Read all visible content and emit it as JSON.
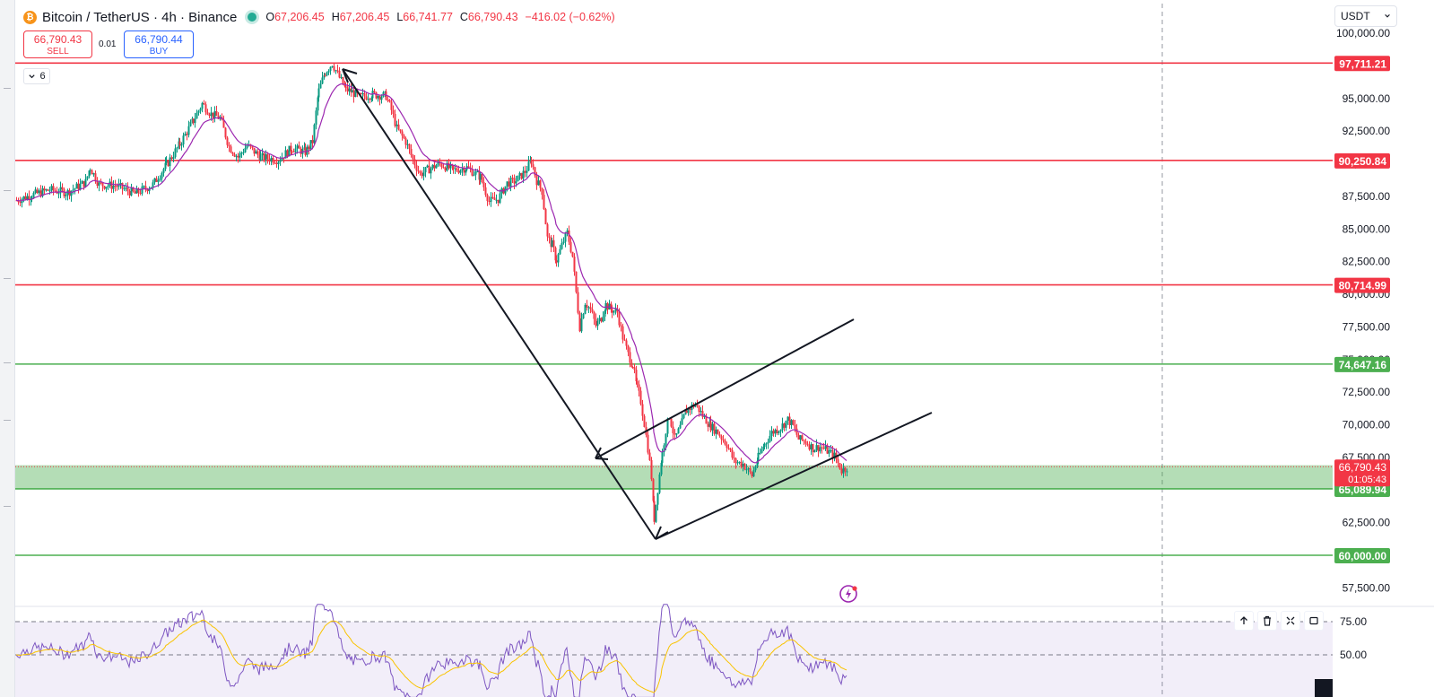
{
  "symbol": {
    "title": "Bitcoin / TetherUS · 4h · Binance",
    "coin_glyph": "₿",
    "status_color": "#22ab94"
  },
  "ohlc": {
    "open_key": "O",
    "open": "67,206.45",
    "high_key": "H",
    "high": "67,206.45",
    "low_key": "L",
    "low": "66,741.77",
    "close_key": "C",
    "close": "66,790.43",
    "change": "−416.02 (−0.62%)"
  },
  "trade": {
    "sell_price": "66,790.43",
    "sell_label": "SELL",
    "spread": "0.01",
    "buy_price": "66,790.44",
    "buy_label": "BUY"
  },
  "indicators_toggle": {
    "count": "6"
  },
  "currency": {
    "selected": "USDT"
  },
  "price_axis": {
    "ticks": [
      "100,000.00",
      "97,500.00",
      "95,000.00",
      "92,500.00",
      "90,000.00",
      "87,500.00",
      "85,000.00",
      "82,500.00",
      "80,000.00",
      "77,500.00",
      "75,000.00",
      "72,500.00",
      "70,000.00",
      "67,500.00",
      "65,000.00",
      "62,500.00",
      "60,000.00",
      "57,500.00"
    ],
    "current_price": "66,790.43",
    "countdown": "01:05:43"
  },
  "levels": [
    {
      "price": 97711.21,
      "label": "97,711.21",
      "color": "#f23645"
    },
    {
      "price": 90250.84,
      "label": "90,250.84",
      "color": "#f23645"
    },
    {
      "price": 80714.99,
      "label": "80,714.99",
      "color": "#f23645"
    },
    {
      "price": 74647.16,
      "label": "74,647.16",
      "color": "#4caf50"
    },
    {
      "price": 65089.94,
      "label": "65,089.94",
      "color": "#4caf50"
    },
    {
      "price": 60000.0,
      "label": "60,000.00",
      "color": "#4caf50"
    }
  ],
  "support_zone": {
    "from": 65089.94,
    "to": 66900,
    "color": "#4caf50"
  },
  "rsi": {
    "ticks": [
      "75.00",
      "50.00"
    ]
  },
  "colors": {
    "up": "#089981",
    "down": "#f23645",
    "ma": "#9c27b0",
    "rsi_line": "#7e57c2",
    "rsi_signal": "#f9c300",
    "accent": "#2962ff"
  },
  "price_path": [
    [
      18,
      87200
    ],
    [
      35,
      87600
    ],
    [
      55,
      88000
    ],
    [
      75,
      87800
    ],
    [
      95,
      88600
    ],
    [
      100,
      89700
    ],
    [
      110,
      88400
    ],
    [
      130,
      88300
    ],
    [
      150,
      87700
    ],
    [
      170,
      88400
    ],
    [
      185,
      89900
    ],
    [
      200,
      91500
    ],
    [
      215,
      93300
    ],
    [
      225,
      94600
    ],
    [
      235,
      93800
    ],
    [
      245,
      93500
    ],
    [
      255,
      91300
    ],
    [
      265,
      90500
    ],
    [
      275,
      91400
    ],
    [
      290,
      90500
    ],
    [
      310,
      90300
    ],
    [
      325,
      91200
    ],
    [
      340,
      90900
    ],
    [
      348,
      91700
    ],
    [
      355,
      95600
    ],
    [
      362,
      97000
    ],
    [
      370,
      97700
    ],
    [
      378,
      96600
    ],
    [
      385,
      95700
    ],
    [
      392,
      95500
    ],
    [
      400,
      95100
    ],
    [
      415,
      95300
    ],
    [
      430,
      95200
    ],
    [
      436,
      94100
    ],
    [
      442,
      92700
    ],
    [
      452,
      91700
    ],
    [
      460,
      90300
    ],
    [
      468,
      89200
    ],
    [
      478,
      89600
    ],
    [
      490,
      90000
    ],
    [
      505,
      89500
    ],
    [
      520,
      89700
    ],
    [
      535,
      89000
    ],
    [
      545,
      87100
    ],
    [
      555,
      87300
    ],
    [
      565,
      88500
    ],
    [
      575,
      88700
    ],
    [
      585,
      89400
    ],
    [
      592,
      90200
    ],
    [
      598,
      88700
    ],
    [
      604,
      87900
    ],
    [
      610,
      84300
    ],
    [
      615,
      83800
    ],
    [
      620,
      82600
    ],
    [
      628,
      84100
    ],
    [
      632,
      84700
    ],
    [
      638,
      82900
    ],
    [
      642,
      80100
    ],
    [
      646,
      77500
    ],
    [
      652,
      79400
    ],
    [
      658,
      78800
    ],
    [
      664,
      77600
    ],
    [
      670,
      78200
    ],
    [
      675,
      79200
    ],
    [
      682,
      78800
    ],
    [
      688,
      78600
    ],
    [
      694,
      76700
    ],
    [
      700,
      75400
    ],
    [
      705,
      74600
    ],
    [
      710,
      72800
    ],
    [
      714,
      71800
    ],
    [
      718,
      70100
    ],
    [
      722,
      68200
    ],
    [
      726,
      66000
    ],
    [
      729,
      62800
    ],
    [
      733,
      65100
    ],
    [
      738,
      67800
    ],
    [
      742,
      69600
    ],
    [
      746,
      70700
    ],
    [
      752,
      68900
    ],
    [
      758,
      69800
    ],
    [
      765,
      71100
    ],
    [
      775,
      71600
    ],
    [
      783,
      70700
    ],
    [
      792,
      69900
    ],
    [
      800,
      69400
    ],
    [
      810,
      68500
    ],
    [
      818,
      67200
    ],
    [
      828,
      67000
    ],
    [
      838,
      66100
    ],
    [
      845,
      67500
    ],
    [
      852,
      68500
    ],
    [
      860,
      69400
    ],
    [
      870,
      69800
    ],
    [
      878,
      70400
    ],
    [
      884,
      69900
    ],
    [
      890,
      68900
    ],
    [
      898,
      68700
    ],
    [
      906,
      68200
    ],
    [
      914,
      68300
    ],
    [
      922,
      68000
    ],
    [
      930,
      67600
    ],
    [
      938,
      66500
    ],
    [
      945,
      66790
    ]
  ]
}
